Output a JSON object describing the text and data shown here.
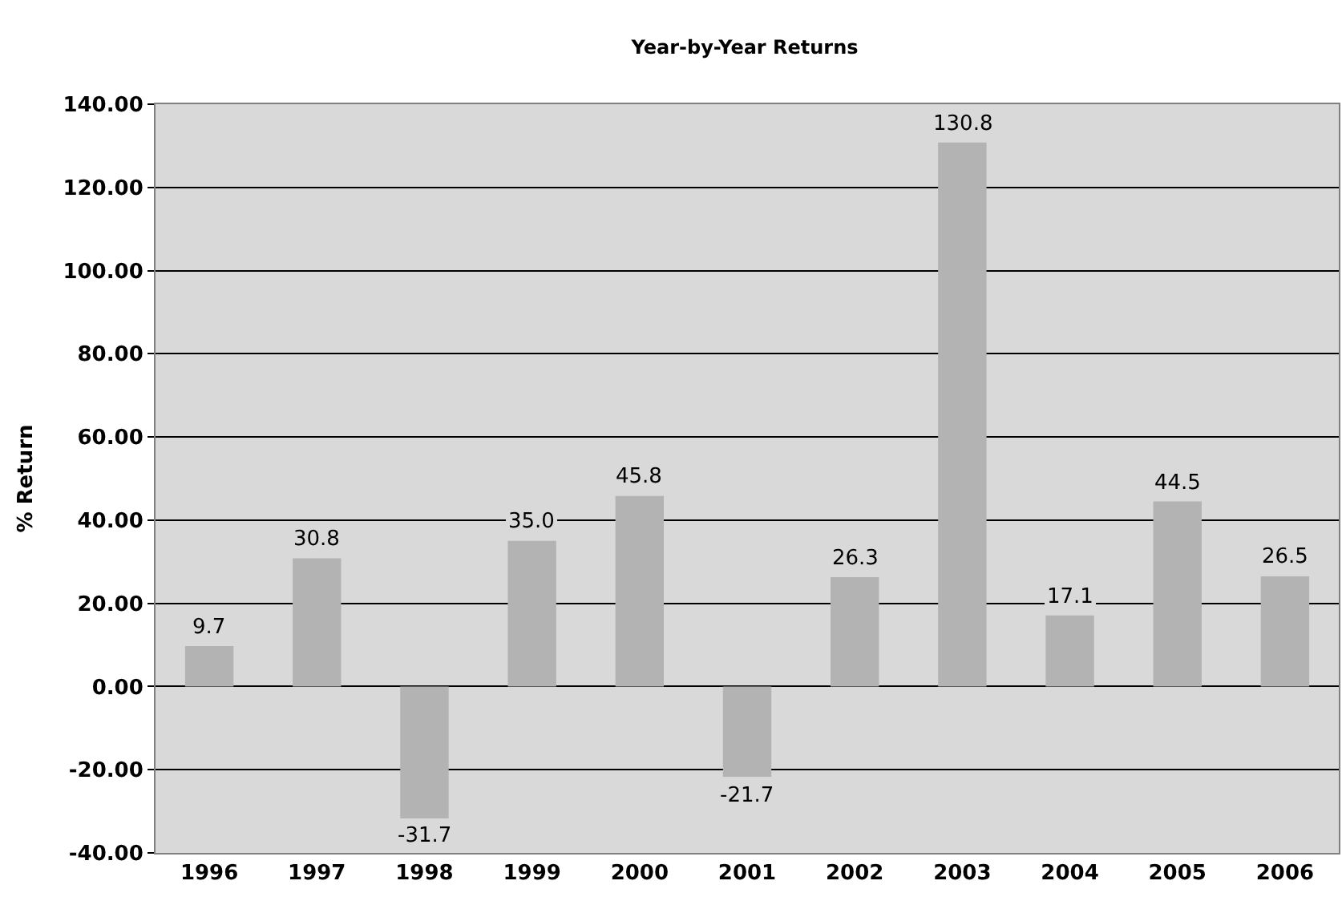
{
  "chart_data": {
    "type": "bar",
    "title": "Year-by-Year Returns",
    "ylabel": "% Return",
    "categories": [
      "1996",
      "1997",
      "1998",
      "1999",
      "2000",
      "2001",
      "2002",
      "2003",
      "2004",
      "2005",
      "2006"
    ],
    "values": [
      9.7,
      30.8,
      -31.7,
      35.0,
      45.8,
      -21.7,
      26.3,
      130.8,
      17.1,
      44.5,
      26.5
    ],
    "value_labels": [
      "9.7",
      "30.8",
      "-31.7",
      "35.0",
      "45.8",
      "-21.7",
      "26.3",
      "130.8",
      "17.1",
      "44.5",
      "26.5"
    ],
    "color": "#b3b3b3",
    "ylim": [
      -40,
      140
    ],
    "yticks": [
      {
        "value": -40,
        "label": "-40.00"
      },
      {
        "value": -20,
        "label": "-20.00"
      },
      {
        "value": 0,
        "label": "0.00"
      },
      {
        "value": 20,
        "label": "20.00"
      },
      {
        "value": 40,
        "label": "40.00"
      },
      {
        "value": 60,
        "label": "60.00"
      },
      {
        "value": 80,
        "label": "80.00"
      },
      {
        "value": 100,
        "label": "100.00"
      },
      {
        "value": 120,
        "label": "120.00"
      },
      {
        "value": 140,
        "label": "140.00"
      }
    ],
    "grid": "y"
  }
}
